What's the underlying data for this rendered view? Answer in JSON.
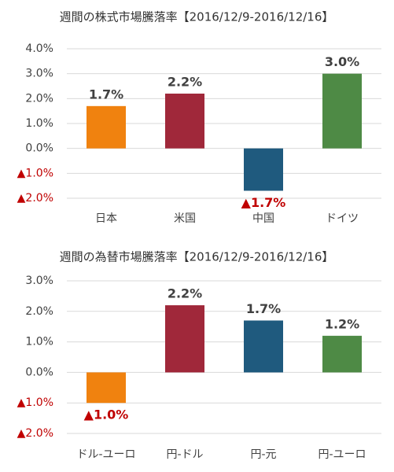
{
  "chart_data": [
    {
      "type": "bar",
      "title": "週間の株式市場騰落率【2016/12/9-2016/12/16】",
      "categories": [
        "日本",
        "米国",
        "中国",
        "ドイツ"
      ],
      "values": [
        1.7,
        2.2,
        -1.7,
        3.0
      ],
      "value_labels": [
        "1.7%",
        "2.2%",
        "▲1.7%",
        "3.0%"
      ],
      "colors": [
        "#f0820f",
        "#a0283a",
        "#1f5a7e",
        "#4e8a45"
      ],
      "ylim": [
        -2,
        4
      ],
      "yticks": [
        {
          "value": 4,
          "label": "4.0%"
        },
        {
          "value": 3,
          "label": "3.0%"
        },
        {
          "value": 2,
          "label": "2.0%"
        },
        {
          "value": 1,
          "label": "1.0%"
        },
        {
          "value": 0,
          "label": "0.0%"
        },
        {
          "value": -1,
          "label": "▲1.0%"
        },
        {
          "value": -2,
          "label": "▲2.0%"
        }
      ],
      "grid": true
    },
    {
      "type": "bar",
      "title": "週間の為替市場騰落率【2016/12/9-2016/12/16】",
      "categories": [
        "ドル-ユーロ",
        "円-ドル",
        "円-元",
        "円-ユーロ"
      ],
      "values": [
        -1.0,
        2.2,
        1.7,
        1.2
      ],
      "value_labels": [
        "▲1.0%",
        "2.2%",
        "1.7%",
        "1.2%"
      ],
      "colors": [
        "#f0820f",
        "#a0283a",
        "#1f5a7e",
        "#4e8a45"
      ],
      "ylim": [
        -2,
        3
      ],
      "yticks": [
        {
          "value": 3,
          "label": "3.0%"
        },
        {
          "value": 2,
          "label": "2.0%"
        },
        {
          "value": 1,
          "label": "1.0%"
        },
        {
          "value": 0,
          "label": "0.0%"
        },
        {
          "value": -1,
          "label": "▲1.0%"
        },
        {
          "value": -2,
          "label": "▲2.0%"
        }
      ],
      "grid": true
    }
  ]
}
